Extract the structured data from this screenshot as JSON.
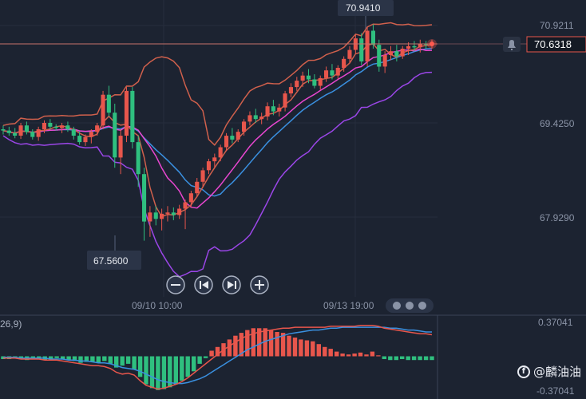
{
  "chart_data": [
    {
      "type": "candlestick",
      "title": "",
      "price_axis": {
        "ticks": [
          "70.9211",
          "69.4250",
          "67.9290"
        ]
      },
      "time_axis": {
        "ticks": [
          "09/10 10:00",
          "09/13 19:00"
        ]
      },
      "current_price_label": "70.6318",
      "high_label": "70.9410",
      "low_label": "67.5600",
      "candles": [
        [
          69.3,
          69.36,
          69.22,
          69.28
        ],
        [
          69.28,
          69.34,
          69.2,
          69.24
        ],
        [
          69.24,
          69.32,
          69.16,
          69.2
        ],
        [
          69.2,
          69.4,
          69.15,
          69.36
        ],
        [
          69.36,
          69.42,
          69.22,
          69.26
        ],
        [
          69.26,
          69.3,
          69.14,
          69.18
        ],
        [
          69.18,
          69.34,
          69.12,
          69.3
        ],
        [
          69.3,
          69.44,
          69.24,
          69.4
        ],
        [
          69.4,
          69.46,
          69.3,
          69.34
        ],
        [
          69.34,
          69.38,
          69.28,
          69.32
        ],
        [
          69.32,
          69.4,
          69.24,
          69.36
        ],
        [
          69.36,
          69.42,
          69.26,
          69.3
        ],
        [
          69.3,
          69.34,
          69.14,
          69.2
        ],
        [
          69.2,
          69.26,
          69.06,
          69.1
        ],
        [
          69.1,
          69.22,
          69.04,
          69.18
        ],
        [
          69.18,
          69.3,
          69.08,
          69.26
        ],
        [
          69.26,
          69.4,
          69.2,
          69.36
        ],
        [
          69.36,
          69.9,
          69.3,
          69.84
        ],
        [
          69.84,
          69.98,
          69.5,
          69.56
        ],
        [
          69.56,
          69.7,
          68.7,
          68.86
        ],
        [
          68.86,
          69.3,
          68.6,
          69.2
        ],
        [
          69.2,
          69.96,
          69.1,
          69.9
        ],
        [
          69.9,
          69.96,
          69.0,
          69.1
        ],
        [
          69.1,
          69.2,
          68.4,
          68.6
        ],
        [
          68.6,
          68.7,
          67.56,
          67.86
        ],
        [
          67.86,
          68.1,
          67.62,
          68.0
        ],
        [
          68.0,
          68.1,
          67.8,
          67.9
        ],
        [
          67.9,
          68.06,
          67.72,
          67.98
        ],
        [
          67.98,
          68.1,
          67.86,
          68.0
        ],
        [
          68.0,
          68.08,
          67.88,
          67.96
        ],
        [
          67.96,
          68.12,
          67.9,
          68.06
        ],
        [
          68.06,
          68.2,
          67.74,
          68.16
        ],
        [
          68.16,
          68.34,
          68.08,
          68.3
        ],
        [
          68.3,
          68.54,
          68.24,
          68.48
        ],
        [
          68.48,
          68.7,
          68.4,
          68.66
        ],
        [
          68.66,
          68.84,
          68.6,
          68.8
        ],
        [
          68.8,
          68.92,
          68.7,
          68.86
        ],
        [
          68.86,
          69.06,
          68.8,
          69.02
        ],
        [
          69.02,
          69.24,
          68.96,
          69.2
        ],
        [
          69.2,
          69.32,
          69.08,
          69.14
        ],
        [
          69.14,
          69.3,
          69.1,
          69.26
        ],
        [
          69.26,
          69.46,
          69.2,
          69.42
        ],
        [
          69.42,
          69.58,
          69.36,
          69.52
        ],
        [
          69.52,
          69.62,
          69.4,
          69.46
        ],
        [
          69.46,
          69.56,
          69.38,
          69.5
        ],
        [
          69.5,
          69.72,
          69.44,
          69.66
        ],
        [
          69.66,
          69.76,
          69.52,
          69.58
        ],
        [
          69.58,
          69.7,
          69.5,
          69.64
        ],
        [
          69.64,
          69.9,
          69.58,
          69.86
        ],
        [
          69.86,
          70.02,
          69.8,
          69.96
        ],
        [
          69.96,
          70.12,
          69.9,
          70.06
        ],
        [
          70.06,
          70.2,
          69.96,
          70.14
        ],
        [
          70.14,
          70.24,
          70.02,
          70.08
        ],
        [
          70.08,
          70.16,
          69.94,
          69.98
        ],
        [
          69.98,
          70.14,
          69.92,
          70.1
        ],
        [
          70.1,
          70.28,
          70.04,
          70.22
        ],
        [
          70.22,
          70.32,
          70.08,
          70.14
        ],
        [
          70.14,
          70.3,
          70.08,
          70.26
        ],
        [
          70.26,
          70.44,
          70.2,
          70.4
        ],
        [
          70.4,
          70.6,
          70.34,
          70.54
        ],
        [
          70.54,
          70.78,
          70.48,
          70.72
        ],
        [
          70.72,
          70.8,
          70.3,
          70.36
        ],
        [
          70.36,
          70.9,
          70.28,
          70.84
        ],
        [
          70.84,
          70.94,
          70.56,
          70.62
        ],
        [
          70.62,
          70.7,
          70.2,
          70.28
        ],
        [
          70.28,
          70.52,
          70.18,
          70.46
        ],
        [
          70.46,
          70.6,
          70.38,
          70.52
        ],
        [
          70.52,
          70.62,
          70.36,
          70.44
        ],
        [
          70.44,
          70.6,
          70.4,
          70.56
        ],
        [
          70.56,
          70.66,
          70.46,
          70.6
        ],
        [
          70.6,
          70.68,
          70.52,
          70.58
        ],
        [
          70.58,
          70.7,
          70.5,
          70.64
        ],
        [
          70.64,
          70.68,
          70.56,
          70.62
        ],
        [
          70.62,
          70.7,
          70.56,
          70.6318
        ]
      ],
      "indicators": {
        "bollinger_upper_color": "#d0604c",
        "bollinger_lower_color": "#9b46e8",
        "ma_fast_color": "#e846d0",
        "ma_mid_color": "#d0604c",
        "ma_slow_color": "#3a90e0"
      },
      "colors": {
        "up": "#e8564c",
        "down": "#2fbf7f"
      }
    },
    {
      "type": "macd",
      "label": "26,9)",
      "axis_ticks": [
        "0.37041",
        "-0.37041"
      ],
      "range": [
        -0.37041,
        0.37041
      ],
      "histogram": [
        -0.03,
        -0.03,
        -0.02,
        -0.03,
        -0.04,
        -0.03,
        -0.03,
        -0.04,
        -0.03,
        -0.02,
        -0.03,
        -0.04,
        -0.05,
        -0.07,
        -0.06,
        -0.06,
        -0.07,
        -0.05,
        -0.08,
        -0.12,
        -0.1,
        -0.08,
        -0.14,
        -0.22,
        -0.3,
        -0.34,
        -0.36,
        -0.35,
        -0.33,
        -0.3,
        -0.26,
        -0.22,
        -0.16,
        -0.08,
        -0.02,
        0.06,
        0.1,
        0.14,
        0.18,
        0.22,
        0.25,
        0.28,
        0.3,
        0.3,
        0.3,
        0.28,
        0.26,
        0.25,
        0.22,
        0.2,
        0.18,
        0.17,
        0.16,
        0.13,
        0.1,
        0.08,
        0.05,
        0.03,
        0.02,
        0.03,
        0.04,
        0.02,
        0.05,
        0.01,
        -0.03,
        -0.04,
        -0.04,
        -0.03,
        -0.04,
        -0.04,
        -0.04,
        -0.04,
        -0.04
      ],
      "dif": [
        -0.02,
        -0.02,
        -0.02,
        -0.03,
        -0.03,
        -0.03,
        -0.03,
        -0.04,
        -0.04,
        -0.04,
        -0.05,
        -0.06,
        -0.07,
        -0.08,
        -0.09,
        -0.1,
        -0.1,
        -0.11,
        -0.13,
        -0.17,
        -0.19,
        -0.18,
        -0.2,
        -0.26,
        -0.31,
        -0.33,
        -0.35,
        -0.34,
        -0.32,
        -0.3,
        -0.27,
        -0.23,
        -0.18,
        -0.13,
        -0.08,
        -0.03,
        0.02,
        0.07,
        0.11,
        0.15,
        0.19,
        0.22,
        0.24,
        0.26,
        0.27,
        0.28,
        0.29,
        0.3,
        0.3,
        0.31,
        0.31,
        0.31,
        0.31,
        0.31,
        0.31,
        0.32,
        0.32,
        0.32,
        0.32,
        0.32,
        0.33,
        0.33,
        0.33,
        0.32,
        0.3,
        0.29,
        0.28,
        0.27,
        0.26,
        0.25,
        0.24,
        0.24,
        0.23
      ],
      "dea": [
        -0.01,
        -0.01,
        -0.01,
        -0.02,
        -0.02,
        -0.02,
        -0.02,
        -0.02,
        -0.03,
        -0.03,
        -0.03,
        -0.04,
        -0.04,
        -0.05,
        -0.05,
        -0.06,
        -0.07,
        -0.07,
        -0.08,
        -0.1,
        -0.12,
        -0.13,
        -0.14,
        -0.16,
        -0.19,
        -0.22,
        -0.25,
        -0.27,
        -0.28,
        -0.29,
        -0.29,
        -0.28,
        -0.26,
        -0.24,
        -0.21,
        -0.17,
        -0.13,
        -0.09,
        -0.05,
        -0.01,
        0.03,
        0.07,
        0.1,
        0.13,
        0.16,
        0.18,
        0.2,
        0.22,
        0.24,
        0.25,
        0.26,
        0.27,
        0.28,
        0.28,
        0.29,
        0.3,
        0.3,
        0.31,
        0.31,
        0.31,
        0.31,
        0.31,
        0.31,
        0.31,
        0.31,
        0.3,
        0.3,
        0.29,
        0.28,
        0.28,
        0.27,
        0.26,
        0.26
      ],
      "dif_color": "#e8564c",
      "dea_color": "#3a90e0"
    }
  ],
  "controls": {
    "zoom_out_icon": "minus-icon",
    "prev_icon": "skip-back-icon",
    "next_icon": "skip-forward-icon",
    "zoom_in_icon": "plus-icon"
  },
  "watermark": {
    "text": "@麟油油"
  }
}
